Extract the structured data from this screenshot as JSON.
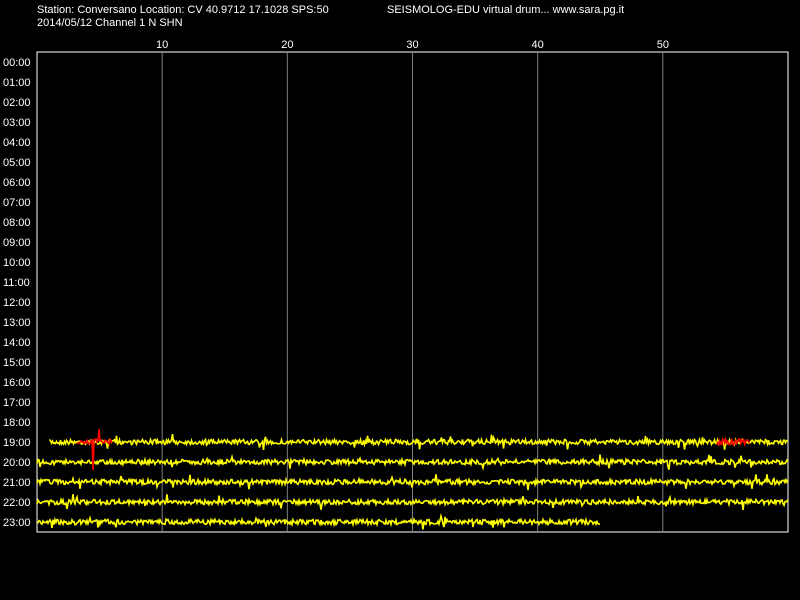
{
  "header": {
    "station_line": "Station: Conversano Location: CV 40.9712 17.1028 SPS:50",
    "date_line": "2014/05/12  Channel 1 N SHN",
    "brand_line": "SEISMOLOG-EDU virtual drum... www.sara.pg.it"
  },
  "chart_data": {
    "type": "line",
    "x_ticks": [
      "10",
      "20",
      "30",
      "40",
      "50"
    ],
    "x_tick_values": [
      10,
      20,
      30,
      40,
      50
    ],
    "xlim": [
      0,
      60
    ],
    "y_labels": [
      "00:00",
      "01:00",
      "02:00",
      "03:00",
      "04:00",
      "05:00",
      "06:00",
      "07:00",
      "08:00",
      "09:00",
      "10:00",
      "11:00",
      "12:00",
      "13:00",
      "14:00",
      "15:00",
      "16:00",
      "17:00",
      "18:00",
      "19:00",
      "20:00",
      "21:00",
      "22:00",
      "23:00"
    ],
    "trace_color": "#ffff00",
    "event_color": "#ff0000",
    "grid_color": "#808080",
    "traces": [
      {
        "hour": "19:00",
        "start_min": 1.0,
        "end_min": 60
      },
      {
        "hour": "20:00",
        "start_min": 0,
        "end_min": 60
      },
      {
        "hour": "21:00",
        "start_min": 0,
        "end_min": 60
      },
      {
        "hour": "22:00",
        "start_min": 0,
        "end_min": 60
      },
      {
        "hour": "23:00",
        "start_min": 0,
        "end_min": 45.0
      }
    ],
    "events": [
      {
        "hour": "19:00",
        "start_min": 3.2,
        "end_min": 6.0
      },
      {
        "hour": "19:00",
        "start_min": 54.3,
        "end_min": 57.0
      }
    ]
  }
}
